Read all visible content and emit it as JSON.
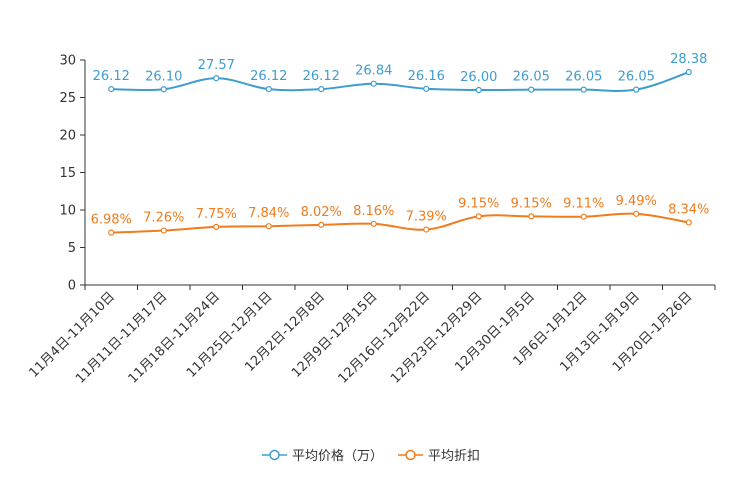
{
  "chart_data": {
    "type": "line",
    "title": "",
    "xlabel": "",
    "ylabel": "",
    "ylim": [
      0,
      30
    ],
    "yticks": [
      0,
      5,
      10,
      15,
      20,
      25,
      30
    ],
    "grid": false,
    "legend_position": "bottom-center",
    "categories": [
      "11月4日-11月10日",
      "11月11日-11月17日",
      "11月18日-11月24日",
      "11月25日-12月1日",
      "12月2日-12月8日",
      "12月9日-12月15日",
      "12月16日-12月22日",
      "12月23日-12月29日",
      "12月30日-1月5日",
      "1月6日-1月12日",
      "1月13日-1月19日",
      "1月20日-1月26日"
    ],
    "series": [
      {
        "name": "平均价格（万）",
        "color": "#3d9dd0",
        "values": [
          26.12,
          26.1,
          27.57,
          26.12,
          26.12,
          26.84,
          26.16,
          26.0,
          26.05,
          26.05,
          26.05,
          28.38
        ],
        "labels": [
          "26.12",
          "26.10",
          "27.57",
          "26.12",
          "26.12",
          "26.84",
          "26.16",
          "26.00",
          "26.05",
          "26.05",
          "26.05",
          "28.38"
        ]
      },
      {
        "name": "平均折扣",
        "color": "#f07c1e",
        "values": [
          6.98,
          7.26,
          7.75,
          7.84,
          8.02,
          8.16,
          7.39,
          9.15,
          9.15,
          9.11,
          9.49,
          8.34
        ],
        "labels": [
          "6.98%",
          "7.26%",
          "7.75%",
          "7.84%",
          "8.02%",
          "8.16%",
          "7.39%",
          "9.15%",
          "9.15%",
          "9.11%",
          "9.49%",
          "8.34%"
        ]
      }
    ]
  }
}
